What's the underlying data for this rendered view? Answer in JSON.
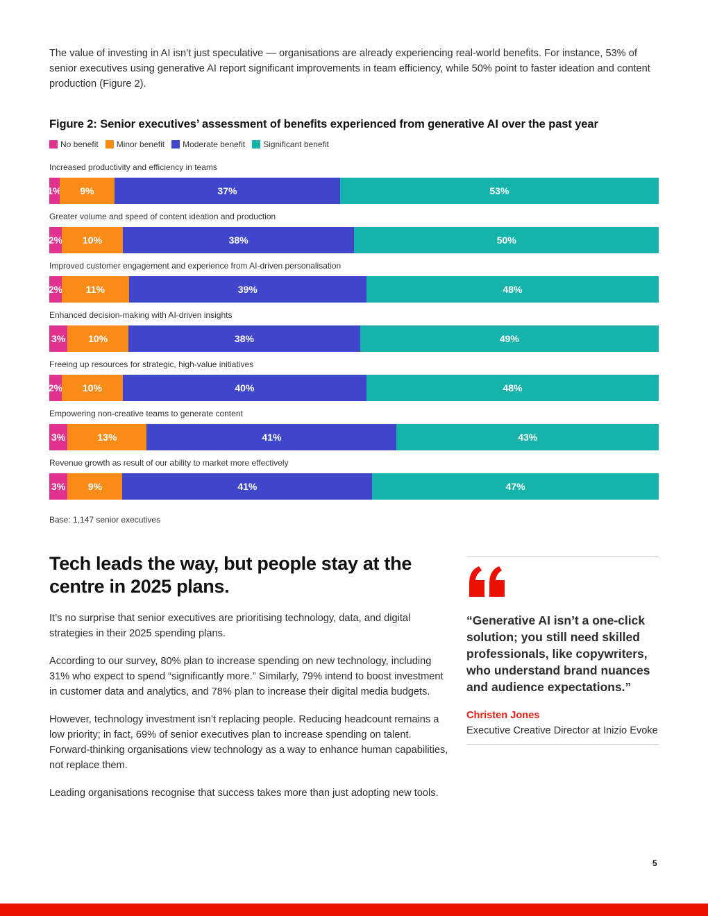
{
  "intro": "The value of investing in AI isn’t just speculative — organisations are already experiencing real-world benefits. For instance, 53% of senior executives using generative AI report significant improvements in team efficiency, while 50% point to faster ideation and content production (Figure 2).",
  "chart_data": {
    "type": "bar",
    "orientation": "horizontal-stacked-100",
    "title": "Figure 2: Senior executives’ assessment of benefits experienced from generative AI over the past year",
    "legend_position": "top-left",
    "grid": false,
    "categories": [
      "Increased productivity and efficiency in teams",
      "Greater volume and speed of content ideation and production",
      "Improved customer engagement and experience from AI-driven personalisation",
      "Enhanced decision-making with AI-driven insights",
      "Freeing up resources for strategic, high-value initiatives",
      "Empowering non-creative teams to generate content",
      "Revenue growth as result of our ability to market more effectively"
    ],
    "series": [
      {
        "name": "No benefit",
        "color": "#e0338f",
        "values": [
          1,
          2,
          2,
          3,
          2,
          3,
          3
        ]
      },
      {
        "name": "Minor benefit",
        "color": "#f98b17",
        "values": [
          9,
          10,
          11,
          10,
          10,
          13,
          9
        ]
      },
      {
        "name": "Moderate benefit",
        "color": "#4046ca",
        "values": [
          37,
          38,
          39,
          38,
          40,
          41,
          41
        ]
      },
      {
        "name": "Significant benefit",
        "color": "#15b3ac",
        "values": [
          53,
          50,
          48,
          49,
          48,
          43,
          47
        ]
      }
    ],
    "value_suffix": "%",
    "note": "Base: 1,147 senior executives"
  },
  "section": {
    "heading": "Tech leads the way, but people stay at the centre in 2025 plans.",
    "paragraphs": [
      "It’s no surprise that senior executives are prioritising technology, data, and digital strategies in their 2025 spending plans.",
      "According to our survey, 80% plan to increase spending on new technology, including 31% who expect to spend “significantly more.” Similarly, 79% intend to boost investment in customer data and analytics, and 78% plan to increase their digital media budgets.",
      "However, technology investment isn’t replacing people. Reducing headcount remains a low priority; in fact, 69% of senior executives plan to increase spending on talent. Forward-thinking organisations view technology as a way to enhance human capabilities, not replace them.",
      "Leading organisations recognise that success takes more than just adopting new tools."
    ]
  },
  "quote": {
    "icon": "quote-mark-icon",
    "text": "“Generative AI isn’t a one-click solution; you still need skilled professionals, like copywriters, who understand brand nuances and audience expectations.”",
    "author": "Christen Jones",
    "role": "Executive Creative Director at Inizio Evoke"
  },
  "page_number": "5",
  "colors": {
    "accent": "#eb1000",
    "quote_author": "#e41e13"
  }
}
